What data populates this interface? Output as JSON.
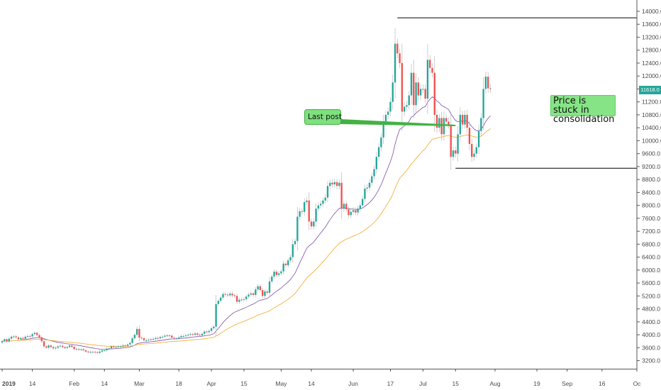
{
  "chart_data": {
    "type": "candlestick",
    "price_label": "11618.0",
    "colors": {
      "up": "#26a69a",
      "down": "#ef5350",
      "ma_fast": "#7b4fa6",
      "ma_slow": "#f5a623",
      "level": "#000000",
      "callout": "#7ee07e"
    },
    "y_ticks": [
      "14000.0",
      "13600.0",
      "13200.0",
      "12800.0",
      "12400.0",
      "12000.0",
      "11600.0",
      "11200.0",
      "10800.0",
      "10400.0",
      "10000.0",
      "9600.0",
      "9200.0",
      "8800.0",
      "8400.0",
      "8000.0",
      "7600.0",
      "7200.0",
      "6800.0",
      "6400.0",
      "6000.0",
      "5600.0",
      "5200.0",
      "4800.0",
      "4400.0",
      "4000.0",
      "3600.0",
      "3200.0"
    ],
    "x_ticks": [
      {
        "label": "2019",
        "day": 0
      },
      {
        "label": "14",
        "day": 13
      },
      {
        "label": "Feb",
        "day": 31
      },
      {
        "label": "14",
        "day": 44
      },
      {
        "label": "Mar",
        "day": 59
      },
      {
        "label": "18",
        "day": 76
      },
      {
        "label": "Apr",
        "day": 90
      },
      {
        "label": "15",
        "day": 104
      },
      {
        "label": "May",
        "day": 120
      },
      {
        "label": "14",
        "day": 133
      },
      {
        "label": "Jun",
        "day": 151
      },
      {
        "label": "17",
        "day": 167
      },
      {
        "label": "Jul",
        "day": 181
      },
      {
        "label": "15",
        "day": 195
      },
      {
        "label": "Aug",
        "day": 212
      },
      {
        "label": "19",
        "day": 230
      },
      {
        "label": "Sep",
        "day": 243
      },
      {
        "label": "16",
        "day": 258
      },
      {
        "label": "Oc",
        "day": 273
      }
    ],
    "ylim": [
      2950,
      14350
    ],
    "xlim_days": [
      0,
      273
    ],
    "closes": [
      3800,
      3860,
      3790,
      3880,
      3940,
      3950,
      3920,
      3860,
      3900,
      3880,
      3940,
      3960,
      3950,
      4020,
      4060,
      3990,
      3920,
      3800,
      3640,
      3600,
      3670,
      3620,
      3580,
      3600,
      3640,
      3660,
      3620,
      3590,
      3620,
      3670,
      3630,
      3560,
      3560,
      3540,
      3550,
      3520,
      3480,
      3460,
      3470,
      3470,
      3460,
      3440,
      3480,
      3520,
      3520,
      3570,
      3580,
      3640,
      3620,
      3620,
      3640,
      3640,
      3670,
      3660,
      3700,
      3750,
      3890,
      4000,
      4180,
      3910,
      3890,
      3830,
      3830,
      3850,
      3860,
      3870,
      3900,
      3890,
      3930,
      3940,
      3970,
      3980,
      3970,
      3910,
      3890,
      3890,
      3920,
      3960,
      3960,
      3980,
      4000,
      4020,
      4000,
      4040,
      4000,
      3980,
      4030,
      4100,
      4080,
      4120,
      4200,
      4250,
      4950,
      5050,
      5150,
      5260,
      5240,
      5220,
      5270,
      5220,
      5200,
      5020,
      5080,
      5090,
      5100,
      5180,
      5240,
      5280,
      5230,
      5400,
      5500,
      5380,
      5200,
      5340,
      5300,
      5650,
      5800,
      5950,
      5850,
      5900,
      5960,
      6200,
      6150,
      6300,
      6400,
      6800,
      6900,
      7650,
      7820,
      7800,
      8100,
      8150,
      7500,
      7350,
      7500,
      7900,
      8000,
      8050,
      8150,
      8240,
      8600,
      8700,
      8650,
      8720,
      8600,
      8700,
      7900,
      8050,
      7880,
      7700,
      7800,
      7850,
      7780,
      7900,
      8000,
      8200,
      8520,
      8550,
      8700,
      8900,
      9120,
      9500,
      9800,
      10100,
      10600,
      10800,
      10900,
      11200,
      11800,
      13000,
      12700,
      12400,
      10900,
      11050,
      11100,
      11400,
      12100,
      11100,
      11800,
      11400,
      11600,
      11600,
      11300,
      12500,
      12250,
      12100,
      10800,
      10400,
      10700,
      10200,
      10700,
      10590,
      10500,
      9500,
      9700,
      9600,
      10200,
      10800,
      10500,
      10800,
      10400,
      9900,
      9500,
      9600,
      9800,
      10300,
      10700,
      11600,
      11980,
      11620,
      11618
    ],
    "level_high": 13800,
    "level_low": 9150,
    "level_high_start_day": 170,
    "level_low_start_day": 195,
    "last_post_day": 195,
    "last_post_price": 10470,
    "annotations": {
      "last_post": "Last post",
      "stuck": "Price is stuck in consolidation"
    }
  }
}
